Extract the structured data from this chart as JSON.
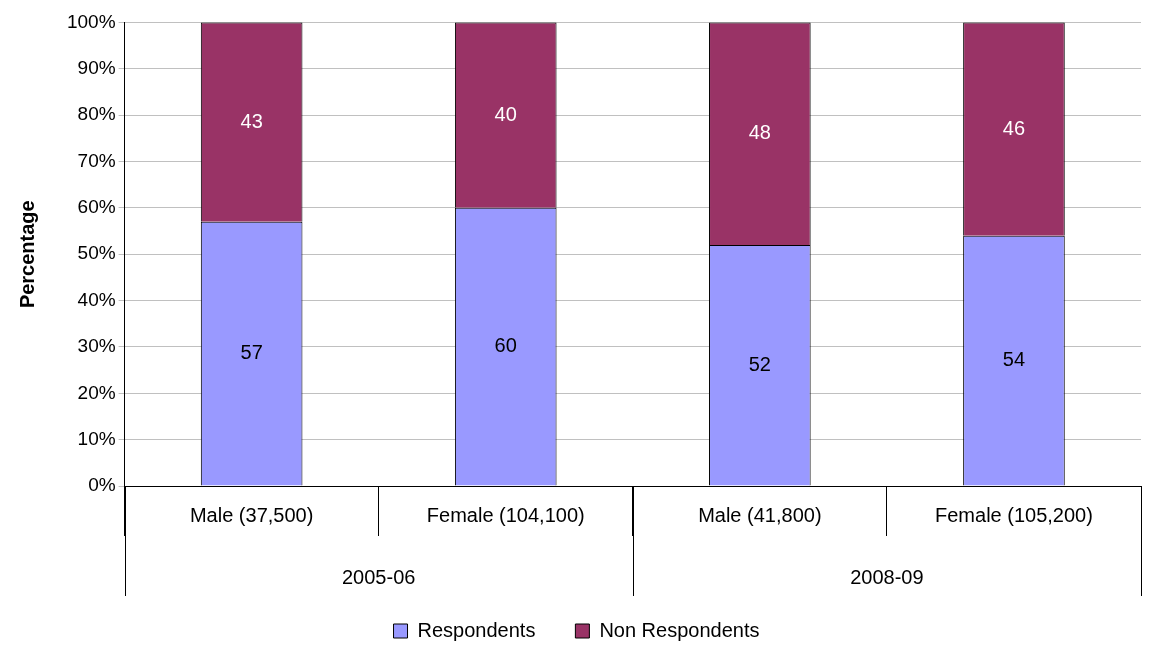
{
  "chart_data": {
    "type": "bar",
    "stacked": true,
    "ylabel": "Percentage",
    "categories": [
      "Male (37,500)",
      "Female (104,100)",
      "Male (41,800)",
      "Female (105,200)"
    ],
    "series": [
      {
        "name": "Respondents",
        "color": "#9999ff",
        "values": [
          57,
          60,
          52,
          54
        ]
      },
      {
        "name": "Non Respondents",
        "color": "#993366",
        "values": [
          43,
          40,
          48,
          46
        ]
      }
    ],
    "ylim": [
      0,
      100
    ],
    "yticks": [
      {
        "value": 0,
        "label": "0%"
      },
      {
        "value": 10,
        "label": "10%"
      },
      {
        "value": 20,
        "label": "20%"
      },
      {
        "value": 30,
        "label": "30%"
      },
      {
        "value": 40,
        "label": "40%"
      },
      {
        "value": 50,
        "label": "50%"
      },
      {
        "value": 60,
        "label": "60%"
      },
      {
        "value": 70,
        "label": "70%"
      },
      {
        "value": 80,
        "label": "80%"
      },
      {
        "value": 90,
        "label": "90%"
      },
      {
        "value": 100,
        "label": "100%"
      }
    ],
    "annotations": [
      "2005-06",
      "2008-09"
    ],
    "grid": "y",
    "legend": "bottom",
    "data_labels": true
  }
}
